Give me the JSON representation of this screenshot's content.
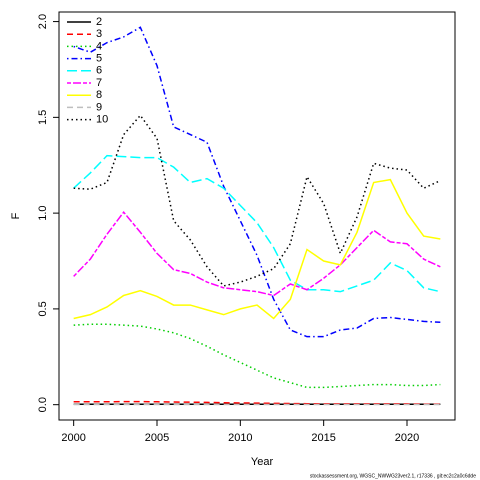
{
  "chart_data": {
    "type": "line",
    "xlabel": "Year",
    "ylabel": "F",
    "footer": "stockassessment.org, WGSC_NWWG23ver2.1, r17336 , git:ec2c2a0c6dde",
    "x": [
      2000,
      2001,
      2002,
      2003,
      2004,
      2005,
      2006,
      2007,
      2008,
      2009,
      2010,
      2011,
      2012,
      2013,
      2014,
      2015,
      2016,
      2017,
      2018,
      2019,
      2020,
      2021,
      2022
    ],
    "xlim": [
      1999.12,
      2022.88
    ],
    "xticks": [
      2000,
      2005,
      2010,
      2015,
      2020
    ],
    "ylim": [
      -0.08,
      2.05
    ],
    "yticks": [
      {
        "value": 0,
        "label": "0.0"
      },
      {
        "value": 0.5,
        "label": "0.5"
      },
      {
        "value": 1,
        "label": "1.0"
      },
      {
        "value": 1.5,
        "label": "1.5"
      },
      {
        "value": 2,
        "label": "2.0"
      }
    ],
    "legend": "top-left",
    "series": [
      {
        "name": "2",
        "color": "#000000",
        "linestyle": "solid",
        "values": [
          0.002,
          0.002,
          0.002,
          0.002,
          0.002,
          0.002,
          0.002,
          0.002,
          0.002,
          0.002,
          0.002,
          0.002,
          0.002,
          0.002,
          0.002,
          0.002,
          0.002,
          0.002,
          0.002,
          0.002,
          0.002,
          0.002,
          0.002
        ]
      },
      {
        "name": "3",
        "color": "#ff0000",
        "linestyle": "dashed",
        "values": [
          0.015,
          0.015,
          0.015,
          0.016,
          0.016,
          0.015,
          0.014,
          0.013,
          0.012,
          0.01,
          0.009,
          0.008,
          0.007,
          0.006,
          0.005,
          0.004,
          0.004,
          0.004,
          0.004,
          0.004,
          0.004,
          0.003,
          0.003
        ]
      },
      {
        "name": "4",
        "color": "#00cd00",
        "linestyle": "dotted",
        "values": [
          0.415,
          0.42,
          0.42,
          0.415,
          0.41,
          0.395,
          0.375,
          0.345,
          0.305,
          0.26,
          0.22,
          0.18,
          0.14,
          0.115,
          0.09,
          0.09,
          0.095,
          0.1,
          0.105,
          0.105,
          0.1,
          0.1,
          0.105
        ]
      },
      {
        "name": "5",
        "color": "#0000ff",
        "linestyle": "dotdash",
        "values": [
          1.87,
          1.84,
          1.89,
          1.92,
          1.97,
          1.77,
          1.45,
          1.41,
          1.37,
          1.14,
          0.96,
          0.78,
          0.55,
          0.39,
          0.355,
          0.355,
          0.39,
          0.4,
          0.45,
          0.455,
          0.445,
          0.435,
          0.43
        ]
      },
      {
        "name": "6",
        "color": "#00ffff",
        "linestyle": "longdash",
        "values": [
          1.13,
          1.21,
          1.3,
          1.295,
          1.29,
          1.29,
          1.24,
          1.16,
          1.18,
          1.13,
          1.04,
          0.95,
          0.82,
          0.65,
          0.6,
          0.6,
          0.59,
          0.62,
          0.65,
          0.74,
          0.7,
          0.61,
          0.59
        ]
      },
      {
        "name": "7",
        "color": "#ff00ff",
        "linestyle": "twodash",
        "values": [
          0.67,
          0.76,
          0.89,
          1.005,
          0.9,
          0.79,
          0.705,
          0.685,
          0.64,
          0.61,
          0.6,
          0.59,
          0.57,
          0.63,
          0.6,
          0.66,
          0.73,
          0.82,
          0.91,
          0.85,
          0.84,
          0.76,
          0.72
        ]
      },
      {
        "name": "8",
        "color": "#ffff00",
        "linestyle": "solid",
        "values": [
          0.45,
          0.47,
          0.51,
          0.57,
          0.595,
          0.565,
          0.52,
          0.52,
          0.495,
          0.47,
          0.5,
          0.52,
          0.45,
          0.55,
          0.81,
          0.75,
          0.73,
          0.9,
          1.16,
          1.175,
          1.0,
          0.88,
          0.865
        ]
      },
      {
        "name": "9",
        "color": "#bebebe",
        "linestyle": "dashed",
        "values": [
          0.001,
          0.001,
          0.001,
          0.001,
          0.001,
          0.001,
          0.001,
          0.001,
          0.001,
          0.001,
          0.001,
          0.001,
          0.001,
          0.001,
          0.001,
          0.001,
          0.001,
          0.001,
          0.001,
          0.001,
          0.001,
          0.001,
          0.001
        ]
      },
      {
        "name": "10",
        "color": "#000000",
        "linestyle": "dotted",
        "values": [
          1.13,
          1.125,
          1.16,
          1.41,
          1.51,
          1.39,
          0.96,
          0.86,
          0.72,
          0.62,
          0.64,
          0.67,
          0.71,
          0.84,
          1.19,
          1.05,
          0.79,
          0.98,
          1.26,
          1.235,
          1.225,
          1.13,
          1.17
        ]
      }
    ]
  }
}
